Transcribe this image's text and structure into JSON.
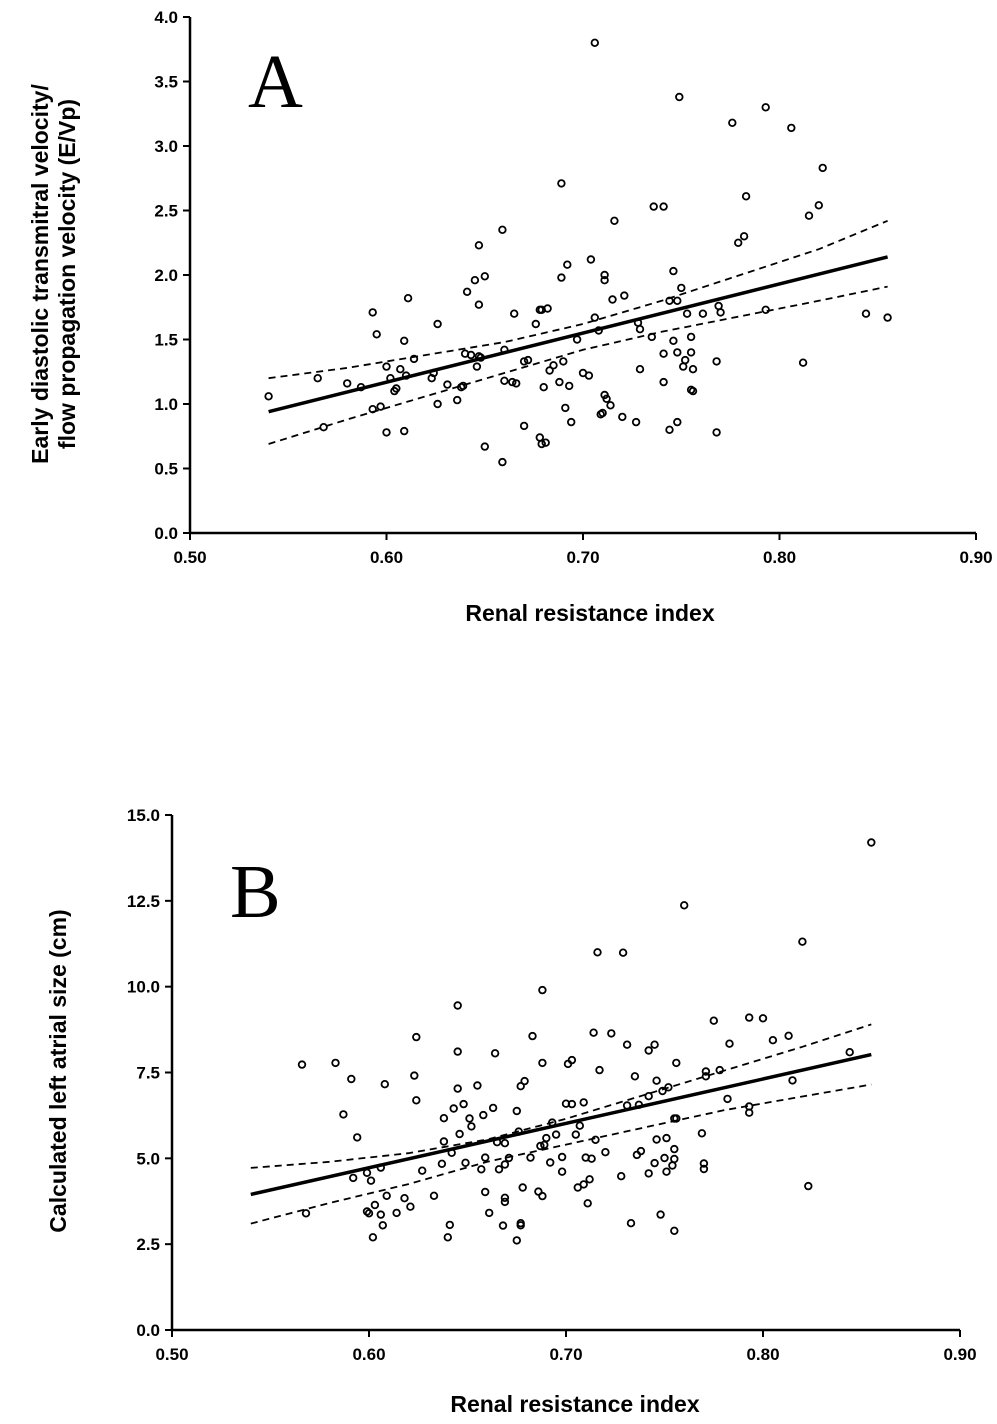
{
  "chart_data": [
    {
      "type": "scatter",
      "panel_label": "A",
      "xlabel": "Renal resistance index",
      "ylabel": [
        "Early diastolic transmitral velocity/",
        "flow propagation velocity (E/Vp)"
      ],
      "xlim": [
        0.5,
        0.9
      ],
      "ylim": [
        0.0,
        4.0
      ],
      "xticks": [
        "0.50",
        "0.60",
        "0.70",
        "0.80",
        "0.90"
      ],
      "yticks": [
        "0.0",
        "0.5",
        "1.0",
        "1.5",
        "2.0",
        "2.5",
        "3.0",
        "3.5",
        "4.0"
      ],
      "regression": {
        "x": [
          0.54,
          0.855
        ],
        "y": [
          0.94,
          2.14
        ]
      },
      "ci_upper": {
        "x": [
          0.54,
          0.58,
          0.62,
          0.66,
          0.7,
          0.74,
          0.78,
          0.82,
          0.855
        ],
        "y": [
          1.2,
          1.28,
          1.38,
          1.48,
          1.62,
          1.8,
          2.0,
          2.2,
          2.42
        ]
      },
      "ci_lower": {
        "x": [
          0.54,
          0.58,
          0.62,
          0.66,
          0.7,
          0.74,
          0.78,
          0.82,
          0.855
        ],
        "y": [
          0.69,
          0.88,
          1.06,
          1.24,
          1.42,
          1.56,
          1.68,
          1.8,
          1.91
        ]
      },
      "points": [
        [
          0.54,
          1.06
        ],
        [
          0.565,
          1.2
        ],
        [
          0.568,
          0.82
        ],
        [
          0.58,
          1.16
        ],
        [
          0.587,
          1.13
        ],
        [
          0.593,
          1.71
        ],
        [
          0.593,
          0.96
        ],
        [
          0.595,
          1.54
        ],
        [
          0.597,
          0.98
        ],
        [
          0.6,
          1.29
        ],
        [
          0.6,
          0.78
        ],
        [
          0.602,
          1.2
        ],
        [
          0.604,
          1.1
        ],
        [
          0.605,
          1.12
        ],
        [
          0.607,
          1.27
        ],
        [
          0.609,
          1.49
        ],
        [
          0.609,
          0.79
        ],
        [
          0.61,
          1.22
        ],
        [
          0.611,
          1.82
        ],
        [
          0.614,
          1.35
        ],
        [
          0.623,
          1.2
        ],
        [
          0.624,
          1.24
        ],
        [
          0.626,
          1.0
        ],
        [
          0.626,
          1.62
        ],
        [
          0.631,
          1.15
        ],
        [
          0.636,
          1.03
        ],
        [
          0.638,
          1.13
        ],
        [
          0.639,
          1.14
        ],
        [
          0.64,
          1.39
        ],
        [
          0.641,
          1.87
        ],
        [
          0.643,
          1.38
        ],
        [
          0.645,
          1.96
        ],
        [
          0.646,
          1.29
        ],
        [
          0.647,
          1.77
        ],
        [
          0.647,
          2.23
        ],
        [
          0.647,
          1.37
        ],
        [
          0.648,
          1.36
        ],
        [
          0.65,
          1.99
        ],
        [
          0.65,
          0.67
        ],
        [
          0.659,
          2.35
        ],
        [
          0.659,
          0.55
        ],
        [
          0.66,
          1.42
        ],
        [
          0.66,
          1.18
        ],
        [
          0.664,
          1.17
        ],
        [
          0.665,
          1.7
        ],
        [
          0.666,
          1.16
        ],
        [
          0.67,
          1.33
        ],
        [
          0.67,
          0.83
        ],
        [
          0.672,
          1.34
        ],
        [
          0.676,
          1.62
        ],
        [
          0.678,
          1.73
        ],
        [
          0.678,
          0.74
        ],
        [
          0.679,
          0.69
        ],
        [
          0.679,
          1.73
        ],
        [
          0.68,
          1.13
        ],
        [
          0.681,
          0.7
        ],
        [
          0.682,
          1.74
        ],
        [
          0.683,
          1.26
        ],
        [
          0.685,
          1.3
        ],
        [
          0.688,
          1.17
        ],
        [
          0.689,
          1.98
        ],
        [
          0.689,
          2.71
        ],
        [
          0.69,
          1.33
        ],
        [
          0.691,
          0.97
        ],
        [
          0.692,
          2.08
        ],
        [
          0.693,
          1.14
        ],
        [
          0.694,
          0.86
        ],
        [
          0.697,
          1.5
        ],
        [
          0.7,
          1.24
        ],
        [
          0.703,
          1.22
        ],
        [
          0.704,
          2.12
        ],
        [
          0.706,
          1.67
        ],
        [
          0.706,
          3.8
        ],
        [
          0.708,
          1.57
        ],
        [
          0.709,
          0.92
        ],
        [
          0.71,
          0.93
        ],
        [
          0.711,
          2.0
        ],
        [
          0.711,
          1.96
        ],
        [
          0.711,
          1.07
        ],
        [
          0.712,
          1.04
        ],
        [
          0.714,
          0.99
        ],
        [
          0.715,
          1.81
        ],
        [
          0.716,
          2.42
        ],
        [
          0.72,
          0.9
        ],
        [
          0.721,
          1.84
        ],
        [
          0.727,
          0.86
        ],
        [
          0.728,
          1.63
        ],
        [
          0.729,
          1.58
        ],
        [
          0.729,
          1.27
        ],
        [
          0.735,
          1.52
        ],
        [
          0.736,
          2.53
        ],
        [
          0.741,
          2.53
        ],
        [
          0.741,
          1.39
        ],
        [
          0.741,
          1.17
        ],
        [
          0.744,
          1.8
        ],
        [
          0.744,
          0.8
        ],
        [
          0.746,
          2.03
        ],
        [
          0.746,
          1.49
        ],
        [
          0.748,
          1.8
        ],
        [
          0.748,
          1.4
        ],
        [
          0.748,
          0.86
        ],
        [
          0.749,
          3.38
        ],
        [
          0.75,
          1.9
        ],
        [
          0.751,
          1.29
        ],
        [
          0.752,
          1.34
        ],
        [
          0.753,
          1.7
        ],
        [
          0.755,
          1.52
        ],
        [
          0.755,
          1.4
        ],
        [
          0.755,
          1.11
        ],
        [
          0.756,
          1.27
        ],
        [
          0.756,
          1.1
        ],
        [
          0.761,
          1.7
        ],
        [
          0.768,
          1.33
        ],
        [
          0.768,
          0.78
        ],
        [
          0.769,
          1.76
        ],
        [
          0.77,
          1.71
        ],
        [
          0.776,
          3.18
        ],
        [
          0.779,
          2.25
        ],
        [
          0.782,
          2.3
        ],
        [
          0.783,
          2.61
        ],
        [
          0.793,
          3.3
        ],
        [
          0.793,
          1.73
        ],
        [
          0.806,
          3.14
        ],
        [
          0.812,
          1.32
        ],
        [
          0.815,
          2.46
        ],
        [
          0.82,
          2.54
        ],
        [
          0.822,
          2.83
        ],
        [
          0.844,
          1.7
        ],
        [
          0.855,
          1.67
        ]
      ]
    },
    {
      "type": "scatter",
      "panel_label": "B",
      "xlabel": "Renal resistance index",
      "ylabel": [
        "Calculated left atrial size (cm)"
      ],
      "xlim": [
        0.5,
        0.9
      ],
      "ylim": [
        0.0,
        15.0
      ],
      "xticks": [
        "0.50",
        "0.60",
        "0.70",
        "0.80",
        "0.90"
      ],
      "yticks": [
        "0.0",
        "2.5",
        "5.0",
        "7.5",
        "10.0",
        "12.5",
        "15.0"
      ],
      "regression": {
        "x": [
          0.54,
          0.855
        ],
        "y": [
          3.95,
          8.02
        ]
      },
      "ci_upper": {
        "x": [
          0.54,
          0.58,
          0.62,
          0.66,
          0.7,
          0.74,
          0.78,
          0.82,
          0.855
        ],
        "y": [
          4.72,
          4.9,
          5.15,
          5.55,
          6.15,
          6.85,
          7.55,
          8.25,
          8.9
        ]
      },
      "ci_lower": {
        "x": [
          0.54,
          0.58,
          0.62,
          0.66,
          0.7,
          0.74,
          0.78,
          0.82,
          0.855
        ],
        "y": [
          3.1,
          3.7,
          4.25,
          4.9,
          5.4,
          5.9,
          6.4,
          6.8,
          7.15
        ]
      },
      "points": [
        [
          0.566,
          7.73
        ],
        [
          0.568,
          3.4
        ],
        [
          0.583,
          7.78
        ],
        [
          0.587,
          6.28
        ],
        [
          0.591,
          7.31
        ],
        [
          0.592,
          4.43
        ],
        [
          0.594,
          5.61
        ],
        [
          0.599,
          3.45
        ],
        [
          0.599,
          4.58
        ],
        [
          0.6,
          3.4
        ],
        [
          0.601,
          4.35
        ],
        [
          0.602,
          2.7
        ],
        [
          0.603,
          3.64
        ],
        [
          0.606,
          3.36
        ],
        [
          0.606,
          4.73
        ],
        [
          0.607,
          3.05
        ],
        [
          0.608,
          7.16
        ],
        [
          0.609,
          3.91
        ],
        [
          0.614,
          3.41
        ],
        [
          0.618,
          3.84
        ],
        [
          0.621,
          3.59
        ],
        [
          0.623,
          7.41
        ],
        [
          0.624,
          8.53
        ],
        [
          0.624,
          6.69
        ],
        [
          0.627,
          4.64
        ],
        [
          0.633,
          3.91
        ],
        [
          0.637,
          4.84
        ],
        [
          0.638,
          6.17
        ],
        [
          0.638,
          5.49
        ],
        [
          0.64,
          2.7
        ],
        [
          0.641,
          3.06
        ],
        [
          0.642,
          5.16
        ],
        [
          0.643,
          6.45
        ],
        [
          0.645,
          9.45
        ],
        [
          0.645,
          8.11
        ],
        [
          0.645,
          7.03
        ],
        [
          0.646,
          5.71
        ],
        [
          0.648,
          6.58
        ],
        [
          0.649,
          4.87
        ],
        [
          0.651,
          6.16
        ],
        [
          0.652,
          5.93
        ],
        [
          0.655,
          7.12
        ],
        [
          0.657,
          4.68
        ],
        [
          0.658,
          6.26
        ],
        [
          0.659,
          5.02
        ],
        [
          0.659,
          4.02
        ],
        [
          0.661,
          3.41
        ],
        [
          0.663,
          6.47
        ],
        [
          0.664,
          8.06
        ],
        [
          0.665,
          5.47
        ],
        [
          0.666,
          4.68
        ],
        [
          0.668,
          3.04
        ],
        [
          0.669,
          5.44
        ],
        [
          0.669,
          4.82
        ],
        [
          0.669,
          3.85
        ],
        [
          0.669,
          3.73
        ],
        [
          0.671,
          5.01
        ],
        [
          0.675,
          2.61
        ],
        [
          0.675,
          6.38
        ],
        [
          0.676,
          5.78
        ],
        [
          0.677,
          7.1
        ],
        [
          0.677,
          3.11
        ],
        [
          0.677,
          3.05
        ],
        [
          0.678,
          4.15
        ],
        [
          0.679,
          7.25
        ],
        [
          0.682,
          5.02
        ],
        [
          0.683,
          8.56
        ],
        [
          0.686,
          4.03
        ],
        [
          0.687,
          5.36
        ],
        [
          0.688,
          7.78
        ],
        [
          0.688,
          3.9
        ],
        [
          0.688,
          9.9
        ],
        [
          0.689,
          5.39
        ],
        [
          0.69,
          5.59
        ],
        [
          0.692,
          4.88
        ],
        [
          0.693,
          6.04
        ],
        [
          0.695,
          5.69
        ],
        [
          0.698,
          5.04
        ],
        [
          0.698,
          4.61
        ],
        [
          0.7,
          6.59
        ],
        [
          0.701,
          7.75
        ],
        [
          0.703,
          7.86
        ],
        [
          0.703,
          6.58
        ],
        [
          0.705,
          5.69
        ],
        [
          0.706,
          4.15
        ],
        [
          0.707,
          5.95
        ],
        [
          0.709,
          6.63
        ],
        [
          0.709,
          4.24
        ],
        [
          0.71,
          5.02
        ],
        [
          0.711,
          3.69
        ],
        [
          0.712,
          4.39
        ],
        [
          0.713,
          4.99
        ],
        [
          0.714,
          8.66
        ],
        [
          0.715,
          5.54
        ],
        [
          0.716,
          11.0
        ],
        [
          0.717,
          7.57
        ],
        [
          0.72,
          5.18
        ],
        [
          0.723,
          8.64
        ],
        [
          0.728,
          4.48
        ],
        [
          0.729,
          10.99
        ],
        [
          0.731,
          6.54
        ],
        [
          0.731,
          8.31
        ],
        [
          0.733,
          3.11
        ],
        [
          0.735,
          7.39
        ],
        [
          0.736,
          5.1
        ],
        [
          0.737,
          6.56
        ],
        [
          0.738,
          5.21
        ],
        [
          0.742,
          8.14
        ],
        [
          0.742,
          6.81
        ],
        [
          0.742,
          4.56
        ],
        [
          0.745,
          8.31
        ],
        [
          0.745,
          4.86
        ],
        [
          0.746,
          7.26
        ],
        [
          0.746,
          5.55
        ],
        [
          0.748,
          3.36
        ],
        [
          0.749,
          6.96
        ],
        [
          0.75,
          5.01
        ],
        [
          0.751,
          5.59
        ],
        [
          0.751,
          4.61
        ],
        [
          0.752,
          7.07
        ],
        [
          0.754,
          4.79
        ],
        [
          0.755,
          6.16
        ],
        [
          0.755,
          5.27
        ],
        [
          0.755,
          4.98
        ],
        [
          0.755,
          2.89
        ],
        [
          0.756,
          7.78
        ],
        [
          0.756,
          6.16
        ],
        [
          0.76,
          12.37
        ],
        [
          0.769,
          5.73
        ],
        [
          0.77,
          4.85
        ],
        [
          0.77,
          4.69
        ],
        [
          0.771,
          7.39
        ],
        [
          0.771,
          7.53
        ],
        [
          0.775,
          9.01
        ],
        [
          0.778,
          7.57
        ],
        [
          0.782,
          6.73
        ],
        [
          0.783,
          8.34
        ],
        [
          0.793,
          9.1
        ],
        [
          0.793,
          6.51
        ],
        [
          0.793,
          6.33
        ],
        [
          0.8,
          9.08
        ],
        [
          0.805,
          8.44
        ],
        [
          0.813,
          8.57
        ],
        [
          0.815,
          7.27
        ],
        [
          0.82,
          11.31
        ],
        [
          0.823,
          4.19
        ],
        [
          0.844,
          8.09
        ],
        [
          0.855,
          14.2
        ]
      ]
    }
  ]
}
